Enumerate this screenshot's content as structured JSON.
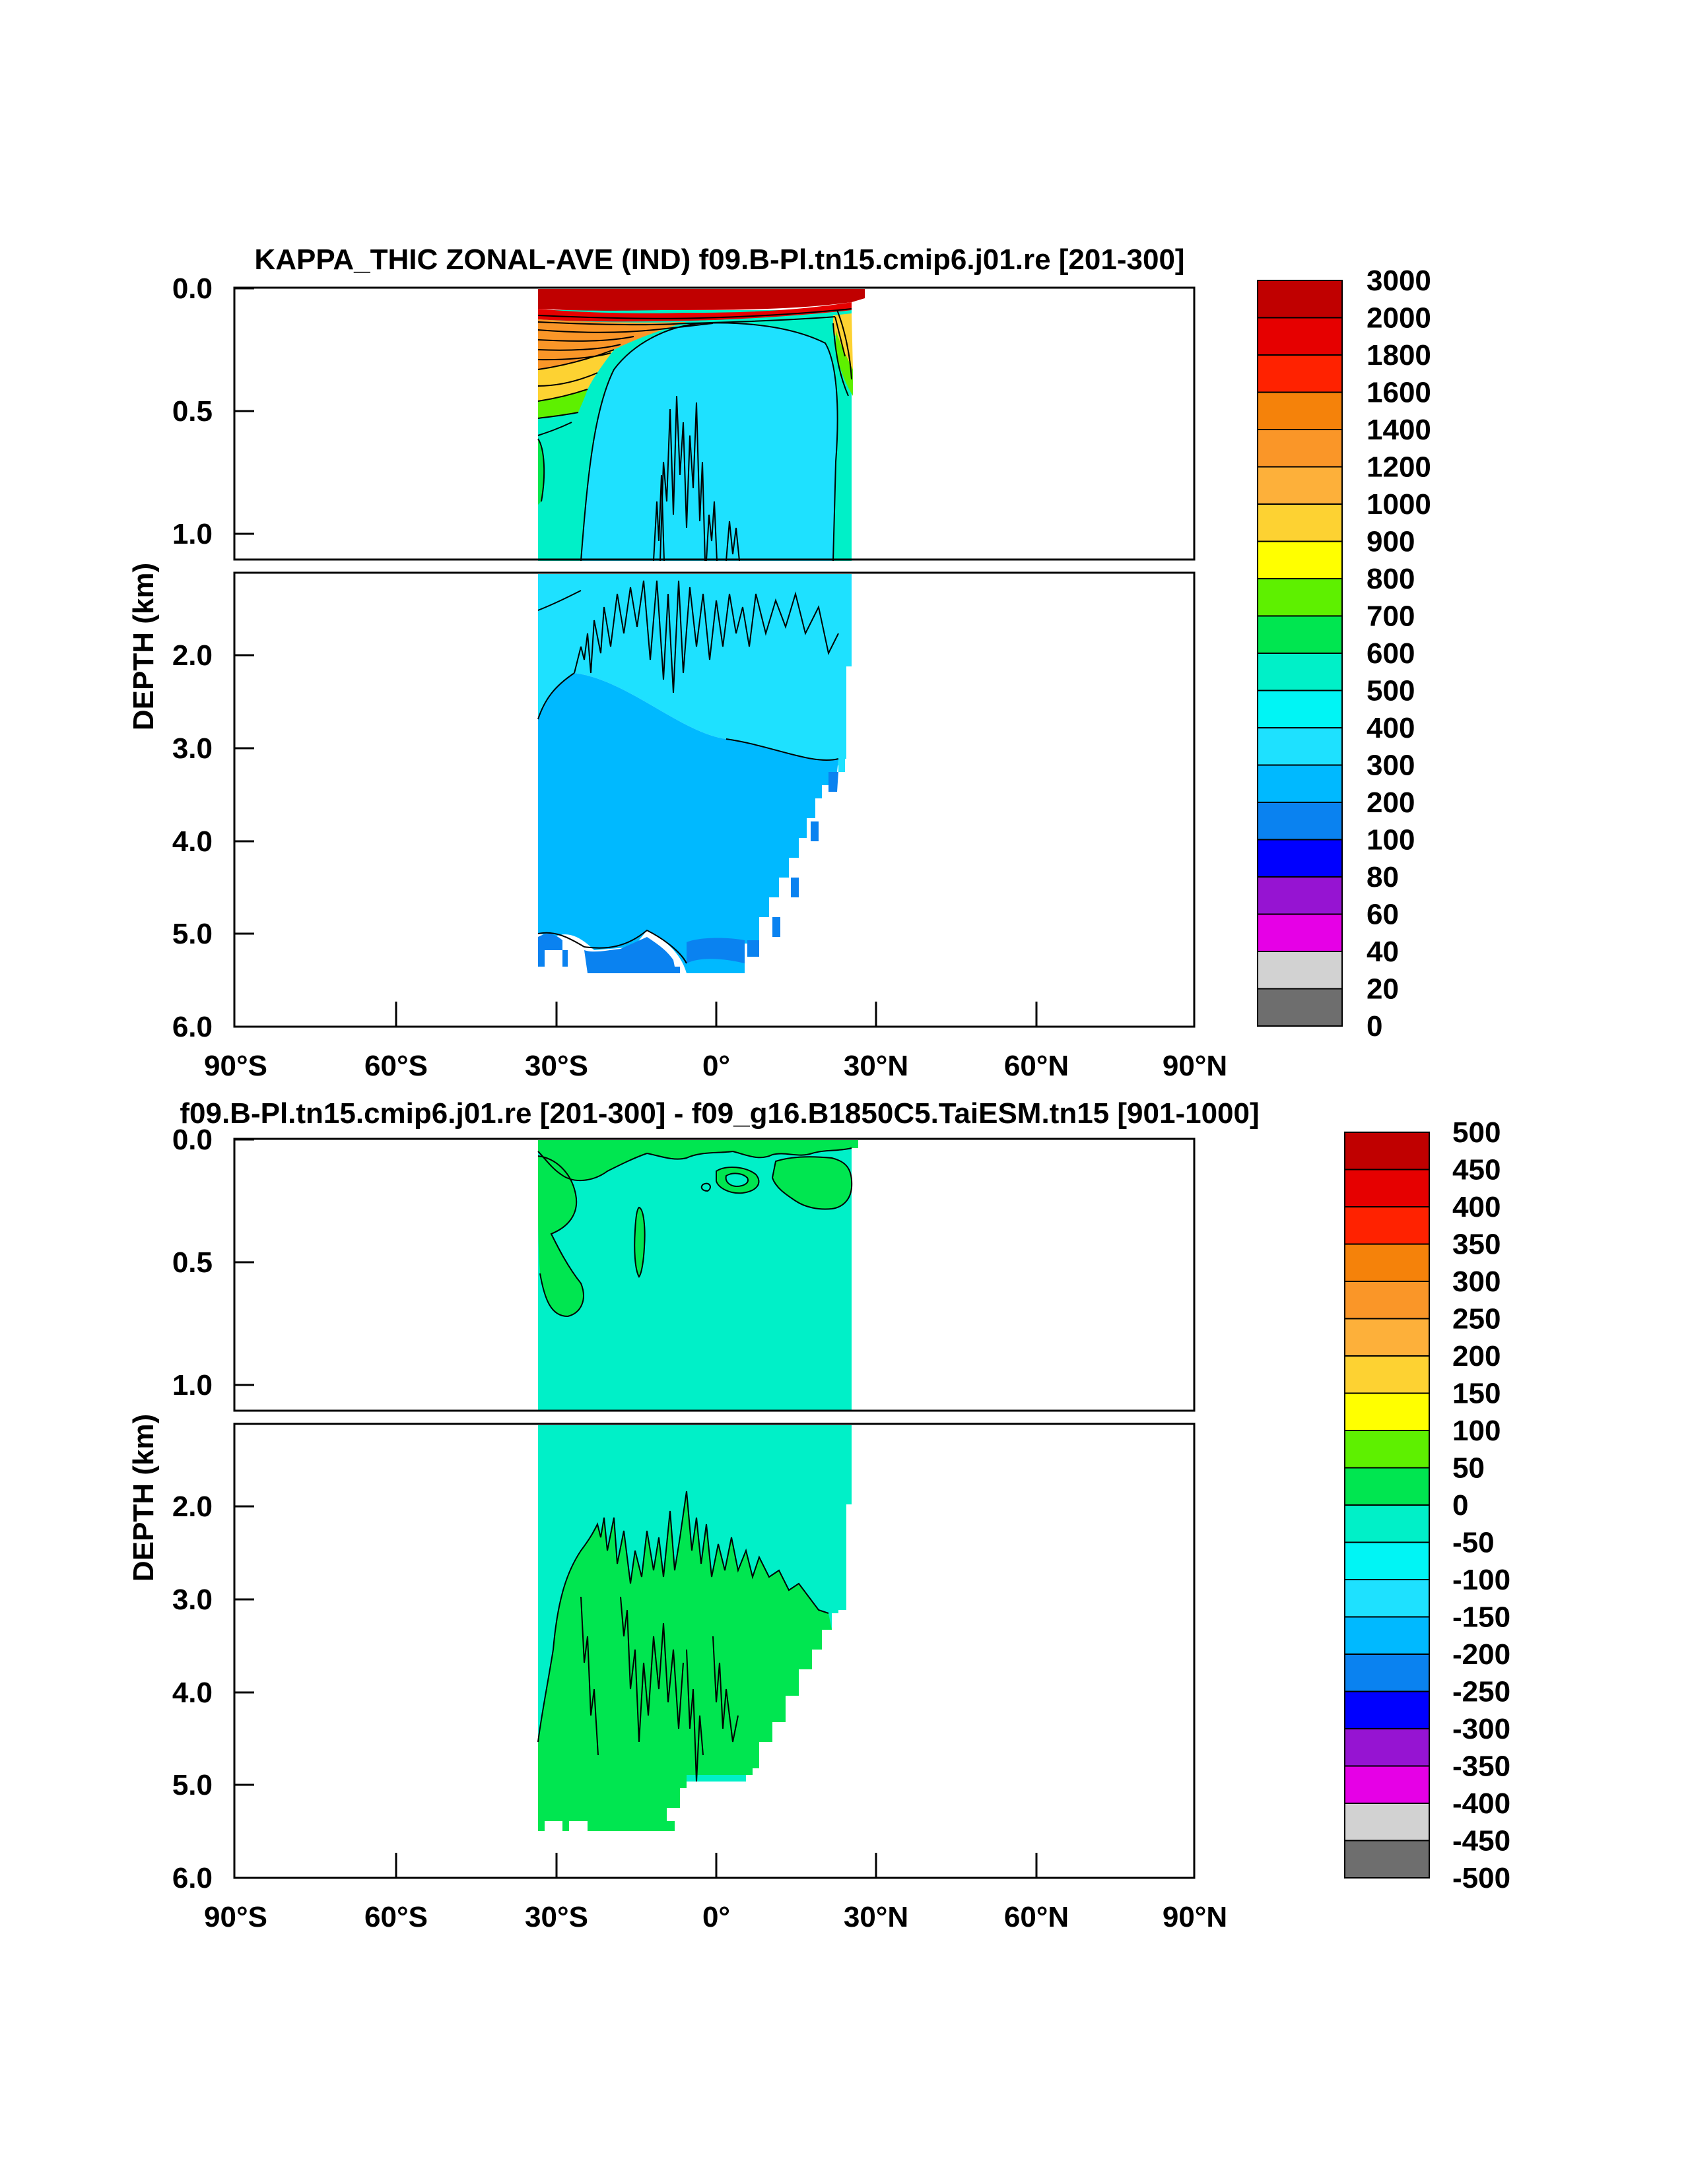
{
  "chart_data": [
    {
      "type": "heatmap",
      "title": "KAPPA_THIC ZONAL-AVE (IND) f09.B-Pl.tn15.cmip6.j01.re [201-300]",
      "xlabel": "",
      "ylabel": "DEPTH (km)",
      "xlim": [
        -90,
        90
      ],
      "ylim": [
        6.0,
        0.0
      ],
      "x_ticks": [
        "90°S",
        "60°S",
        "30°S",
        "0°",
        "30°N",
        "60°N",
        "90°N"
      ],
      "y_ticks_upper": [
        "0.0",
        "0.5",
        "1.0"
      ],
      "y_ticks_lower": [
        "2.0",
        "3.0",
        "4.0",
        "5.0",
        "6.0"
      ],
      "colorbar_labels": [
        "3000",
        "2000",
        "1800",
        "1600",
        "1400",
        "1200",
        "1000",
        "900",
        "800",
        "700",
        "600",
        "500",
        "400",
        "300",
        "200",
        "100",
        "80",
        "60",
        "40",
        "20",
        "0"
      ],
      "colors": [
        "#c00000",
        "#e60000",
        "#ff2200",
        "#f5820a",
        "#fa9628",
        "#fdb03a",
        "#fdd232",
        "#ffff00",
        "#5ef000",
        "#00e650",
        "#00f0c8",
        "#00f5f5",
        "#1ee1ff",
        "#00b9ff",
        "#0a82f0",
        "#0000ff",
        "#9614d2",
        "#e600e6",
        "#d2d2d2",
        "#6e6e6e"
      ]
    },
    {
      "type": "heatmap",
      "title": "f09.B-Pl.tn15.cmip6.j01.re [201-300] - f09_g16.B1850C5.TaiESM.tn15 [901-1000]",
      "xlabel": "",
      "ylabel": "DEPTH (km)",
      "xlim": [
        -90,
        90
      ],
      "ylim": [
        6.0,
        0.0
      ],
      "x_ticks": [
        "90°S",
        "60°S",
        "30°S",
        "0°",
        "30°N",
        "60°N",
        "90°N"
      ],
      "y_ticks_upper": [
        "0.0",
        "0.5",
        "1.0"
      ],
      "y_ticks_lower": [
        "2.0",
        "3.0",
        "4.0",
        "5.0",
        "6.0"
      ],
      "colorbar_labels": [
        "500",
        "450",
        "400",
        "350",
        "300",
        "250",
        "200",
        "150",
        "100",
        "50",
        "0",
        "-50",
        "-100",
        "-150",
        "-200",
        "-250",
        "-300",
        "-350",
        "-400",
        "-450",
        "-500"
      ],
      "colors": [
        "#c00000",
        "#e60000",
        "#ff2200",
        "#f5820a",
        "#fa9628",
        "#fdb03a",
        "#fdd232",
        "#ffff00",
        "#5ef000",
        "#00e650",
        "#00f0c8",
        "#00f5f5",
        "#1ee1ff",
        "#00b9ff",
        "#0a82f0",
        "#0000ff",
        "#9614d2",
        "#e600e6",
        "#d2d2d2",
        "#6e6e6e"
      ]
    }
  ]
}
